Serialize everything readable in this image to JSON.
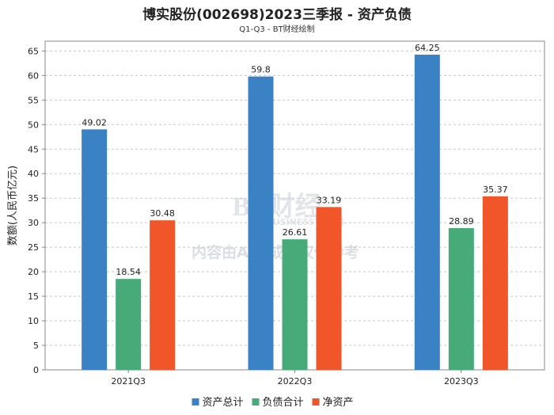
{
  "chart_data": {
    "type": "bar",
    "title": "博实股份(002698)2023三季报 - 资产负债",
    "subtitle": "Q1-Q3 - BT财经绘制",
    "ylabel": "数额(人民币亿元)",
    "xlabel": "",
    "ylim": [
      0,
      67
    ],
    "yticks": [
      0,
      5,
      10,
      15,
      20,
      25,
      30,
      35,
      40,
      45,
      50,
      55,
      60,
      65
    ],
    "grid": true,
    "legend_position": "bottom",
    "categories": [
      "2021Q3",
      "2022Q3",
      "2023Q3"
    ],
    "series": [
      {
        "name": "资产总计",
        "color": "#3a82c4",
        "values": [
          49.02,
          59.8,
          64.25
        ]
      },
      {
        "name": "负债合计",
        "color": "#46ab78",
        "values": [
          18.54,
          26.61,
          28.89
        ]
      },
      {
        "name": "净资产",
        "color": "#f0562a",
        "values": [
          30.48,
          33.19,
          35.37
        ]
      }
    ]
  },
  "watermark": {
    "logo_text": "BT财经",
    "logo_sub": "BUSINESSTIMES",
    "notice": "内容由AI生成，仅供参考"
  }
}
